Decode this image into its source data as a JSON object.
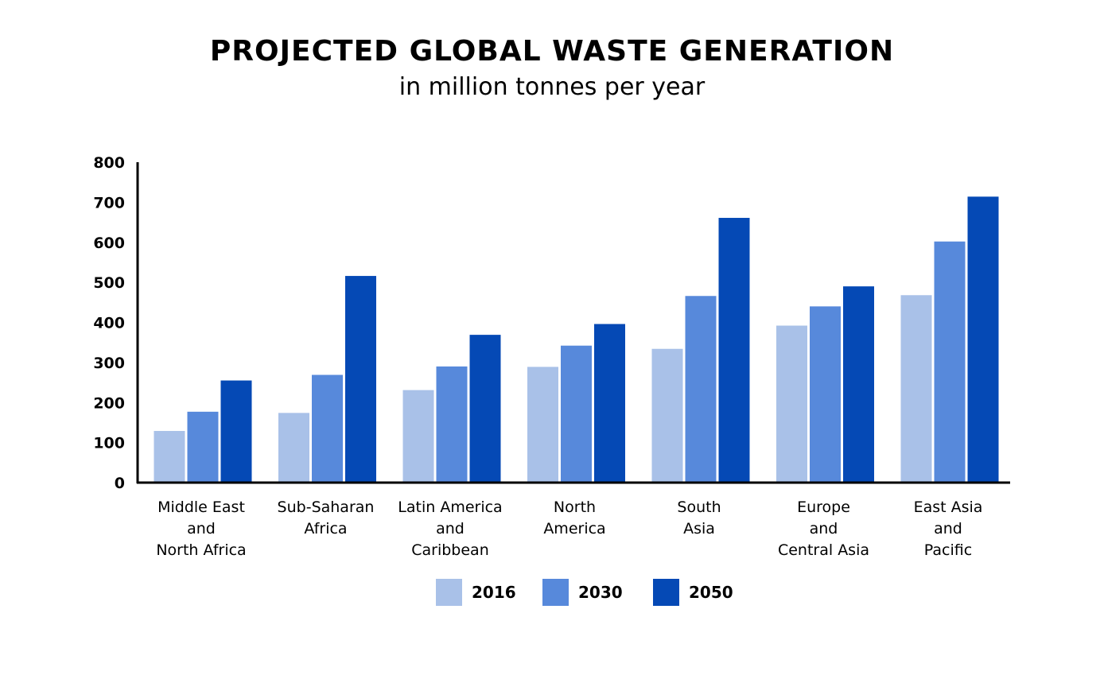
{
  "chart_data": {
    "type": "bar",
    "title": "PROJECTED GLOBAL WASTE GENERATION",
    "subtitle": "in million tonnes per year",
    "categories": [
      [
        "Middle East",
        "and",
        "North Africa"
      ],
      [
        "Sub-Saharan",
        "Africa"
      ],
      [
        "Latin America",
        "and",
        "Caribbean"
      ],
      [
        "North",
        "America"
      ],
      [
        "South",
        "Asia"
      ],
      [
        "Europe",
        "and",
        "Central Asia"
      ],
      [
        "East Asia",
        "and",
        "Pacific"
      ]
    ],
    "series": [
      {
        "name": "2016",
        "color": "#a9c1e8",
        "values": [
          129,
          174,
          231,
          289,
          334,
          392,
          468
        ]
      },
      {
        "name": "2030",
        "color": "#5789db",
        "values": [
          177,
          269,
          290,
          342,
          466,
          440,
          602
        ]
      },
      {
        "name": "2050",
        "color": "#0549b5",
        "values": [
          255,
          516,
          369,
          396,
          661,
          490,
          714
        ]
      }
    ],
    "ylim": [
      0,
      800
    ],
    "yticks": [
      0,
      100,
      200,
      300,
      400,
      500,
      600,
      700,
      800
    ],
    "grid": false,
    "legend": "bottom-center"
  }
}
